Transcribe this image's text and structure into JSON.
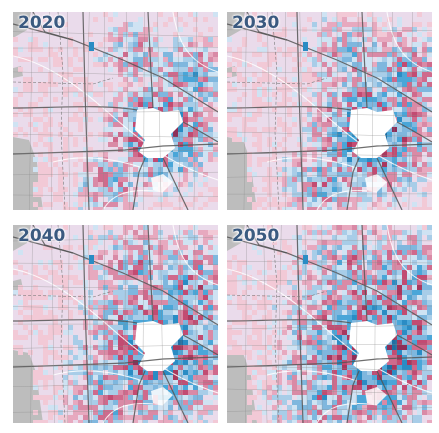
{
  "figure": {
    "panels": [
      {
        "year": "2020",
        "step": 0
      },
      {
        "year": "2030",
        "step": 1
      },
      {
        "year": "2040",
        "step": 2
      },
      {
        "year": "2050",
        "step": 3
      }
    ]
  },
  "colors": {
    "base": "#eadbeb",
    "outside": "#bdbdbd",
    "pinks": [
      "#f2c9d6",
      "#e7a9bf",
      "#d98aa6",
      "#cf6a8c",
      "#c24b72",
      "#a8385e",
      "#8e2f58",
      "#6d2a57"
    ],
    "blues": [
      "#cfe3f3",
      "#a8cde8",
      "#7fb7de",
      "#4aa6d8",
      "#2a8cc4",
      "#1f6fa3"
    ],
    "purples": [
      "#cdb6d3",
      "#a98bb7",
      "#7f6a99"
    ],
    "roads": "#555555",
    "rivers": "#ffffff"
  }
}
